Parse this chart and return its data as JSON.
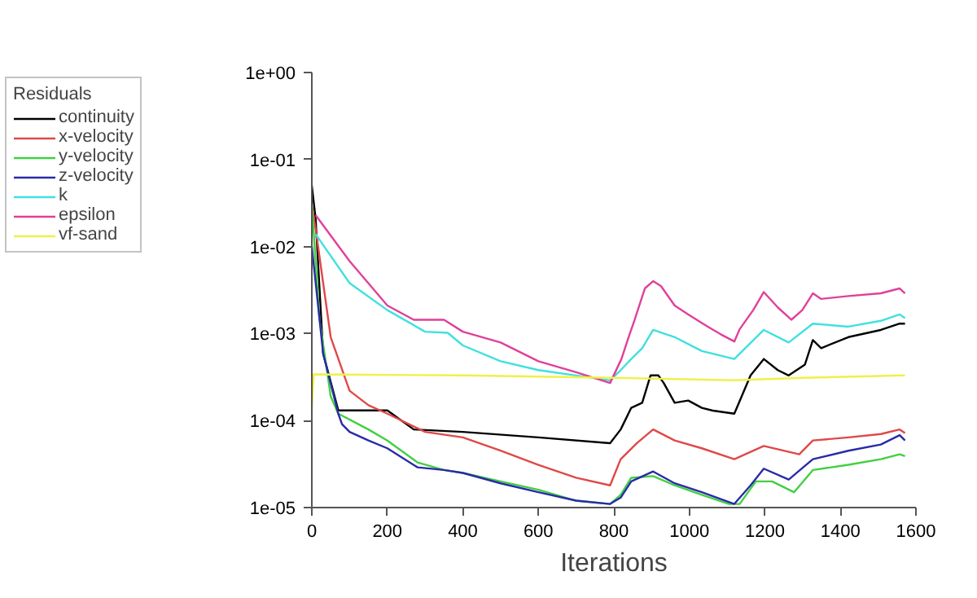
{
  "chart_data": {
    "type": "line",
    "xlabel": "Iterations",
    "legend_title": "Residuals",
    "legend": "top left",
    "log": "y",
    "grid": false,
    "xlim": [
      0,
      1600
    ],
    "xticks": [
      0,
      200,
      400,
      600,
      800,
      1000,
      1200,
      1400,
      1600
    ],
    "ylim": [
      1e-05,
      1
    ],
    "yticks": [
      {
        "value": 1e-05,
        "label": "1e-05"
      },
      {
        "value": 0.0001,
        "label": "1e-04"
      },
      {
        "value": 0.001,
        "label": "1e-03"
      },
      {
        "value": 0.01,
        "label": "1e-02"
      },
      {
        "value": 0.1,
        "label": "1e-01"
      },
      {
        "value": 1,
        "label": "1e+00"
      }
    ],
    "series": [
      {
        "name": "continuity",
        "color": "#000000",
        "x": [
          0,
          10,
          30,
          70,
          200,
          270,
          400,
          600,
          790,
          818,
          846,
          875,
          897,
          918,
          932,
          961,
          997,
          1033,
          1062,
          1119,
          1162,
          1197,
          1234,
          1263,
          1306,
          1327,
          1349,
          1421,
          1507,
          1557,
          1571
        ],
        "values": [
          0.05,
          0.021,
          0.00059,
          0.000131,
          0.000131,
          7.9e-05,
          7.4e-05,
          6.4e-05,
          5.5e-05,
          7.9e-05,
          0.00014,
          0.00016,
          0.00033,
          0.00033,
          0.00027,
          0.00016,
          0.00017,
          0.00014,
          0.00013,
          0.00012,
          0.00033,
          0.00051,
          0.00038,
          0.00033,
          0.00044,
          0.00084,
          0.00068,
          0.00091,
          0.0011,
          0.0013,
          0.0013
        ]
      },
      {
        "name": "x-velocity",
        "color": "#e04848",
        "x": [
          0,
          10,
          50,
          100,
          150,
          200,
          300,
          400,
          500,
          600,
          700,
          790,
          818,
          861,
          904,
          961,
          1033,
          1119,
          1197,
          1291,
          1327,
          1421,
          1507,
          1557,
          1571
        ],
        "values": [
          0.03,
          0.016,
          0.00091,
          0.00022,
          0.00015,
          0.00012,
          7.4e-05,
          6.4e-05,
          4.5e-05,
          3.1e-05,
          2.2e-05,
          1.8e-05,
          3.6e-05,
          5.5e-05,
          7.9e-05,
          5.9e-05,
          4.8e-05,
          3.6e-05,
          5.1e-05,
          4.1e-05,
          5.9e-05,
          6.4e-05,
          7e-05,
          7.9e-05,
          7.2e-05
        ]
      },
      {
        "name": "y-velocity",
        "color": "#40d040",
        "x": [
          0,
          20,
          50,
          70,
          150,
          200,
          280,
          350,
          400,
          500,
          600,
          700,
          790,
          818,
          846,
          904,
          961,
          1033,
          1105,
          1133,
          1176,
          1219,
          1277,
          1327,
          1421,
          1507,
          1557,
          1571
        ],
        "values": [
          0.03,
          0.0015,
          0.00019,
          0.00012,
          7.9e-05,
          5.9e-05,
          3.3e-05,
          2.7e-05,
          2.5e-05,
          2e-05,
          1.6e-05,
          1.2e-05,
          1.1e-05,
          1.4e-05,
          2.2e-05,
          2.3e-05,
          1.8e-05,
          1.4e-05,
          1.1e-05,
          1.1e-05,
          2e-05,
          2e-05,
          1.5e-05,
          2.7e-05,
          3.1e-05,
          3.6e-05,
          4.1e-05,
          3.9e-05
        ]
      },
      {
        "name": "z-velocity",
        "color": "#2a2aa8",
        "x": [
          0,
          30,
          70,
          80,
          100,
          150,
          200,
          280,
          350,
          400,
          500,
          600,
          700,
          790,
          818,
          846,
          904,
          961,
          1033,
          1119,
          1162,
          1197,
          1263,
          1327,
          1421,
          1507,
          1557,
          1571
        ],
        "values": [
          0.01,
          0.00059,
          0.00012,
          9.1e-05,
          7.4e-05,
          5.9e-05,
          4.8e-05,
          2.9e-05,
          2.7e-05,
          2.5e-05,
          1.9e-05,
          1.5e-05,
          1.2e-05,
          1.1e-05,
          1.3e-05,
          2e-05,
          2.6e-05,
          1.9e-05,
          1.5e-05,
          1.1e-05,
          1.8e-05,
          2.8e-05,
          2.1e-05,
          3.6e-05,
          4.5e-05,
          5.3e-05,
          6.8e-05,
          5.9e-05
        ]
      },
      {
        "name": "k",
        "color": "#40e0e0",
        "x": [
          10,
          100,
          200,
          300,
          360,
          400,
          500,
          600,
          700,
          790,
          818,
          846,
          875,
          904,
          961,
          1033,
          1119,
          1197,
          1263,
          1327,
          1421,
          1507,
          1557,
          1571
        ],
        "values": [
          0.0139,
          0.0038,
          0.00186,
          0.00105,
          0.00102,
          0.00073,
          0.00048,
          0.00038,
          0.00033,
          0.00029,
          0.00038,
          0.00051,
          0.00068,
          0.0011,
          0.00091,
          0.00063,
          0.00051,
          0.0011,
          0.00079,
          0.0013,
          0.0012,
          0.0014,
          0.00166,
          0.0015
        ]
      },
      {
        "name": "epsilon",
        "color": "#e0409a",
        "x": [
          10,
          100,
          200,
          270,
          350,
          400,
          500,
          600,
          700,
          790,
          820,
          839,
          854,
          882,
          904,
          925,
          961,
          997,
          1047,
          1083,
          1119,
          1133,
          1169,
          1197,
          1234,
          1270,
          1299,
          1327,
          1349,
          1421,
          1507,
          1557,
          1571
        ],
        "values": [
          0.023,
          0.0068,
          0.0021,
          0.00144,
          0.00144,
          0.00105,
          0.00079,
          0.00048,
          0.00036,
          0.00027,
          0.00051,
          0.00091,
          0.0014,
          0.0033,
          0.004,
          0.0035,
          0.0021,
          0.00166,
          0.00121,
          0.00098,
          0.00081,
          0.00112,
          0.00186,
          0.003,
          0.002,
          0.00144,
          0.00186,
          0.0029,
          0.0025,
          0.0027,
          0.0029,
          0.0033,
          0.0029
        ]
      },
      {
        "name": "vf-sand",
        "color": "#f0f048",
        "x": [
          0,
          5,
          400,
          800,
          1119,
          1300,
          1571
        ],
        "values": [
          0.00014,
          0.00034,
          0.00033,
          0.00031,
          0.00029,
          0.00031,
          0.00033
        ]
      }
    ]
  }
}
